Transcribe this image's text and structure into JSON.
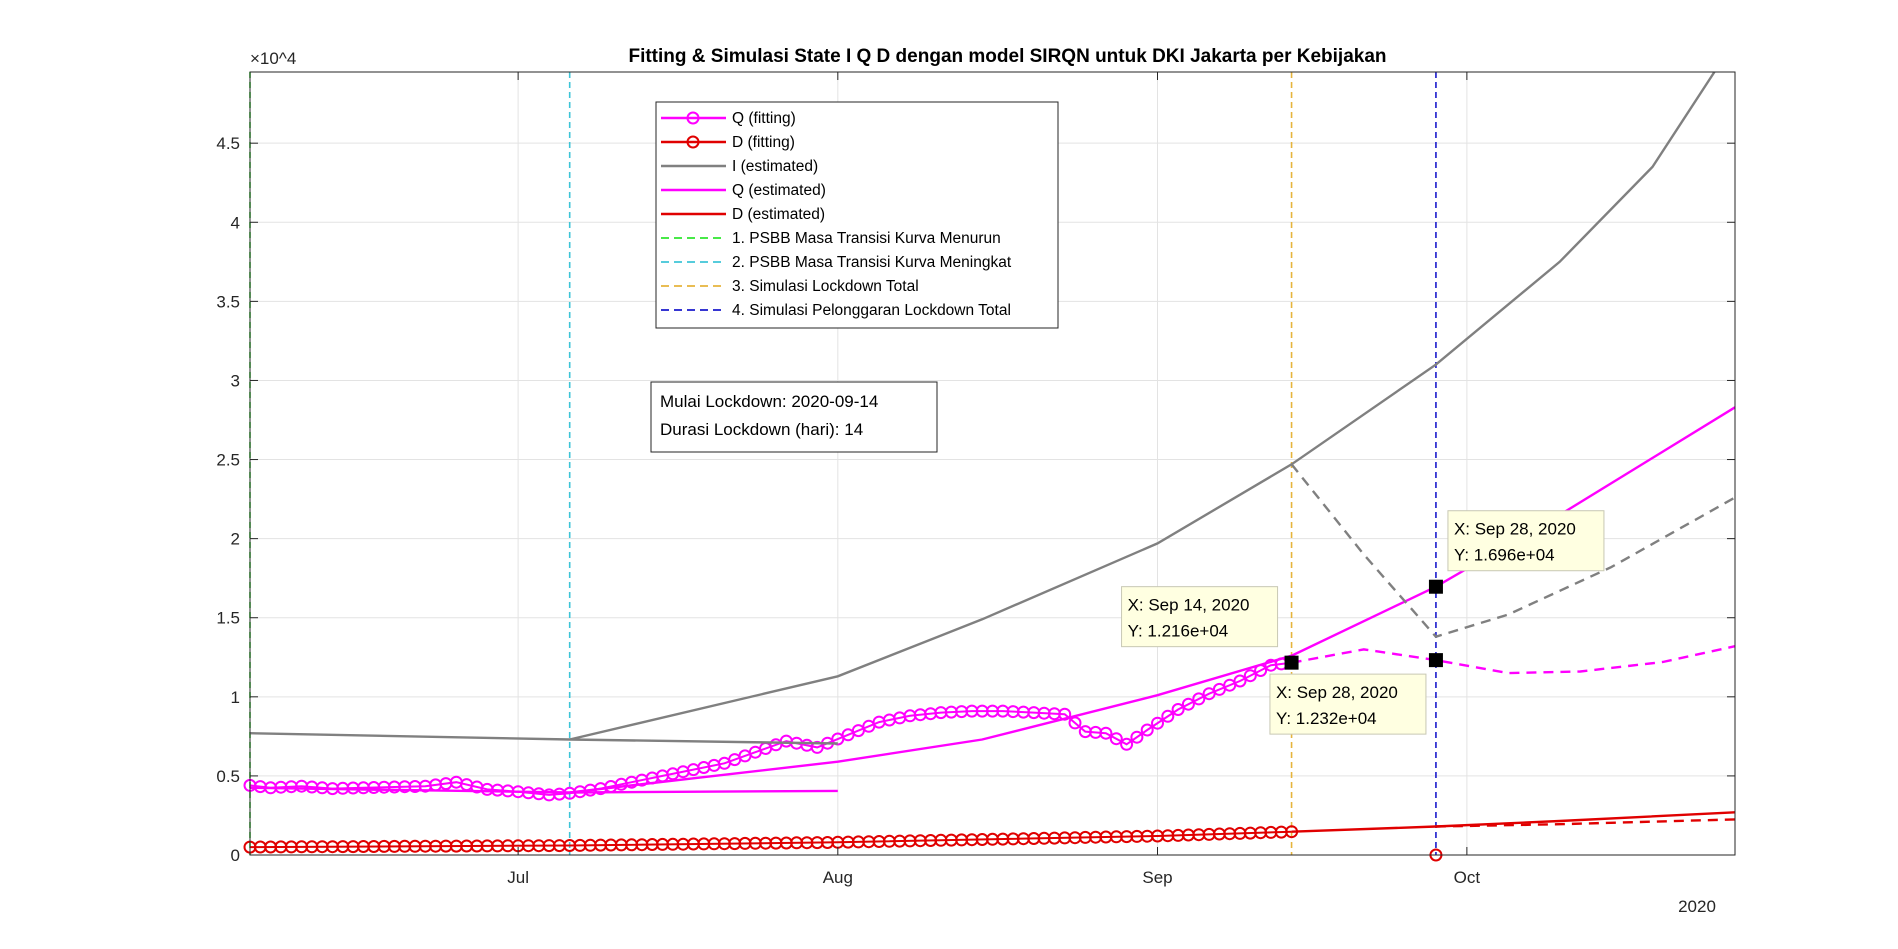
{
  "chart_data": {
    "type": "line",
    "title": "Fitting & Simulasi State  I Q D dengan model SIRQN untuk DKI Jakarta per Kebijakan",
    "xlabel": "",
    "ylabel": "",
    "x_ticks": [
      "Jul",
      "Aug",
      "Sep",
      "Oct"
    ],
    "x_year": "2020",
    "x_range": [
      "2020-06-05",
      "2020-10-27"
    ],
    "y_exponent": "×10^4",
    "y_range": [
      0,
      49500
    ],
    "y_ticks": [
      "0",
      "0.5",
      "1",
      "1.5",
      "2",
      "2.5",
      "3",
      "3.5",
      "4",
      "4.5"
    ],
    "grid": true,
    "legend_position": "top-center",
    "legend": [
      "Q (fitting)",
      "D (fitting)",
      "I (estimated)",
      "Q (estimated)",
      "D (estimated)",
      "1. PSBB Masa Transisi Kurva Menurun",
      "2. PSBB Masa Transisi Kurva Meningkat",
      "3. Simulasi Lockdown Total",
      "4. Simulasi Pelonggaran Lockdown Total"
    ],
    "colors": {
      "q": "#ff00ff",
      "d": "#e00000",
      "i": "#808080",
      "v1": "#2ee62e",
      "v2": "#3ec5d8",
      "v3": "#e6b43c",
      "v4": "#1a1acc"
    },
    "policy_dates": [
      "2020-06-05",
      "2020-07-06",
      "2020-09-14",
      "2020-09-28"
    ],
    "series": [
      {
        "name": "Q (fitting)",
        "style": "circles-line",
        "x": [
          "2020-06-05",
          "2020-06-07",
          "2020-06-10",
          "2020-06-13",
          "2020-06-16",
          "2020-06-19",
          "2020-06-22",
          "2020-06-25",
          "2020-06-28",
          "2020-07-01",
          "2020-07-04",
          "2020-07-06",
          "2020-07-09",
          "2020-07-12",
          "2020-07-15",
          "2020-07-18",
          "2020-07-21",
          "2020-07-24",
          "2020-07-27",
          "2020-07-30",
          "2020-08-02",
          "2020-08-05",
          "2020-08-08",
          "2020-08-11",
          "2020-08-14",
          "2020-08-17",
          "2020-08-20",
          "2020-08-23",
          "2020-08-25",
          "2020-08-27",
          "2020-08-29",
          "2020-08-31",
          "2020-09-03",
          "2020-09-06",
          "2020-09-09",
          "2020-09-12",
          "2020-09-14"
        ],
        "values": [
          4400,
          4250,
          4350,
          4200,
          4250,
          4300,
          4350,
          4600,
          4150,
          4000,
          3800,
          3900,
          4200,
          4600,
          5000,
          5400,
          5800,
          6500,
          7200,
          6800,
          7600,
          8400,
          8800,
          9000,
          9100,
          9100,
          9000,
          8900,
          7800,
          7700,
          7000,
          7900,
          9200,
          10200,
          11000,
          12000,
          12160
        ]
      },
      {
        "name": "D (fitting)",
        "style": "circles-line",
        "x": [
          "2020-06-05",
          "2020-07-06",
          "2020-08-01",
          "2020-09-01",
          "2020-09-14"
        ],
        "values": [
          500,
          600,
          800,
          1200,
          1470
        ]
      },
      {
        "name": "D (fitting) extra point",
        "style": "circles",
        "x": [
          "2020-09-28"
        ],
        "values": [
          0
        ]
      },
      {
        "name": "I (estimated) phase 1",
        "style": "solid",
        "x": [
          "2020-06-05",
          "2020-07-06",
          "2020-08-01"
        ],
        "values": [
          7700,
          7300,
          7050
        ]
      },
      {
        "name": "I (estimated) phase 2",
        "style": "solid",
        "x": [
          "2020-07-06",
          "2020-08-01",
          "2020-08-15",
          "2020-09-01",
          "2020-09-14",
          "2020-09-28",
          "2020-10-10",
          "2020-10-19",
          "2020-10-25"
        ],
        "values": [
          7300,
          11300,
          14900,
          19700,
          24700,
          31000,
          37500,
          43500,
          49500
        ]
      },
      {
        "name": "Q (estimated) phase 1",
        "style": "solid",
        "x": [
          "2020-06-05",
          "2020-07-06",
          "2020-08-01"
        ],
        "values": [
          4250,
          3950,
          4050
        ]
      },
      {
        "name": "Q (estimated) phase 2",
        "style": "solid",
        "x": [
          "2020-07-06",
          "2020-07-20",
          "2020-08-01",
          "2020-08-15",
          "2020-09-01",
          "2020-09-14",
          "2020-09-28",
          "2020-10-10",
          "2020-10-27"
        ],
        "values": [
          3950,
          5000,
          5900,
          7300,
          10100,
          12600,
          16960,
          21500,
          28300
        ]
      },
      {
        "name": "I (estimated) lockdown",
        "style": "dashed",
        "x": [
          "2020-09-14",
          "2020-09-21",
          "2020-09-28",
          "2020-10-05",
          "2020-10-15",
          "2020-10-27"
        ],
        "values": [
          24700,
          19000,
          13800,
          15200,
          18200,
          22600
        ]
      },
      {
        "name": "Q (estimated) lockdown",
        "style": "dashed",
        "x": [
          "2020-09-14",
          "2020-09-21",
          "2020-09-28",
          "2020-10-05",
          "2020-10-12",
          "2020-10-20",
          "2020-10-27"
        ],
        "values": [
          12160,
          13000,
          12320,
          11500,
          11600,
          12200,
          13200
        ]
      },
      {
        "name": "D (estimated)",
        "style": "solid",
        "x": [
          "2020-09-14",
          "2020-09-28",
          "2020-10-10",
          "2020-10-27"
        ],
        "values": [
          1470,
          1800,
          2150,
          2700
        ]
      },
      {
        "name": "D (estimated) lockdown",
        "style": "dashed",
        "x": [
          "2020-09-28",
          "2020-10-10",
          "2020-10-27"
        ],
        "values": [
          1800,
          1950,
          2250
        ]
      }
    ],
    "annotation_box": {
      "line1": "Mulai Lockdown: 2020-09-14",
      "line2": "Durasi Lockdown (hari): 14"
    },
    "datatips": [
      {
        "x": "2020-09-14",
        "y": 12160,
        "line1": "X: Sep 14, 2020",
        "line2": "Y: 1.216e+04",
        "placement": "above-left"
      },
      {
        "x": "2020-09-28",
        "y": 16960,
        "line1": "X: Sep 28, 2020",
        "line2": "Y: 1.696e+04",
        "placement": "above-right"
      },
      {
        "x": "2020-09-28",
        "y": 12320,
        "line1": "X: Sep 28, 2020",
        "line2": "Y: 1.232e+04",
        "placement": "below-left"
      }
    ]
  }
}
